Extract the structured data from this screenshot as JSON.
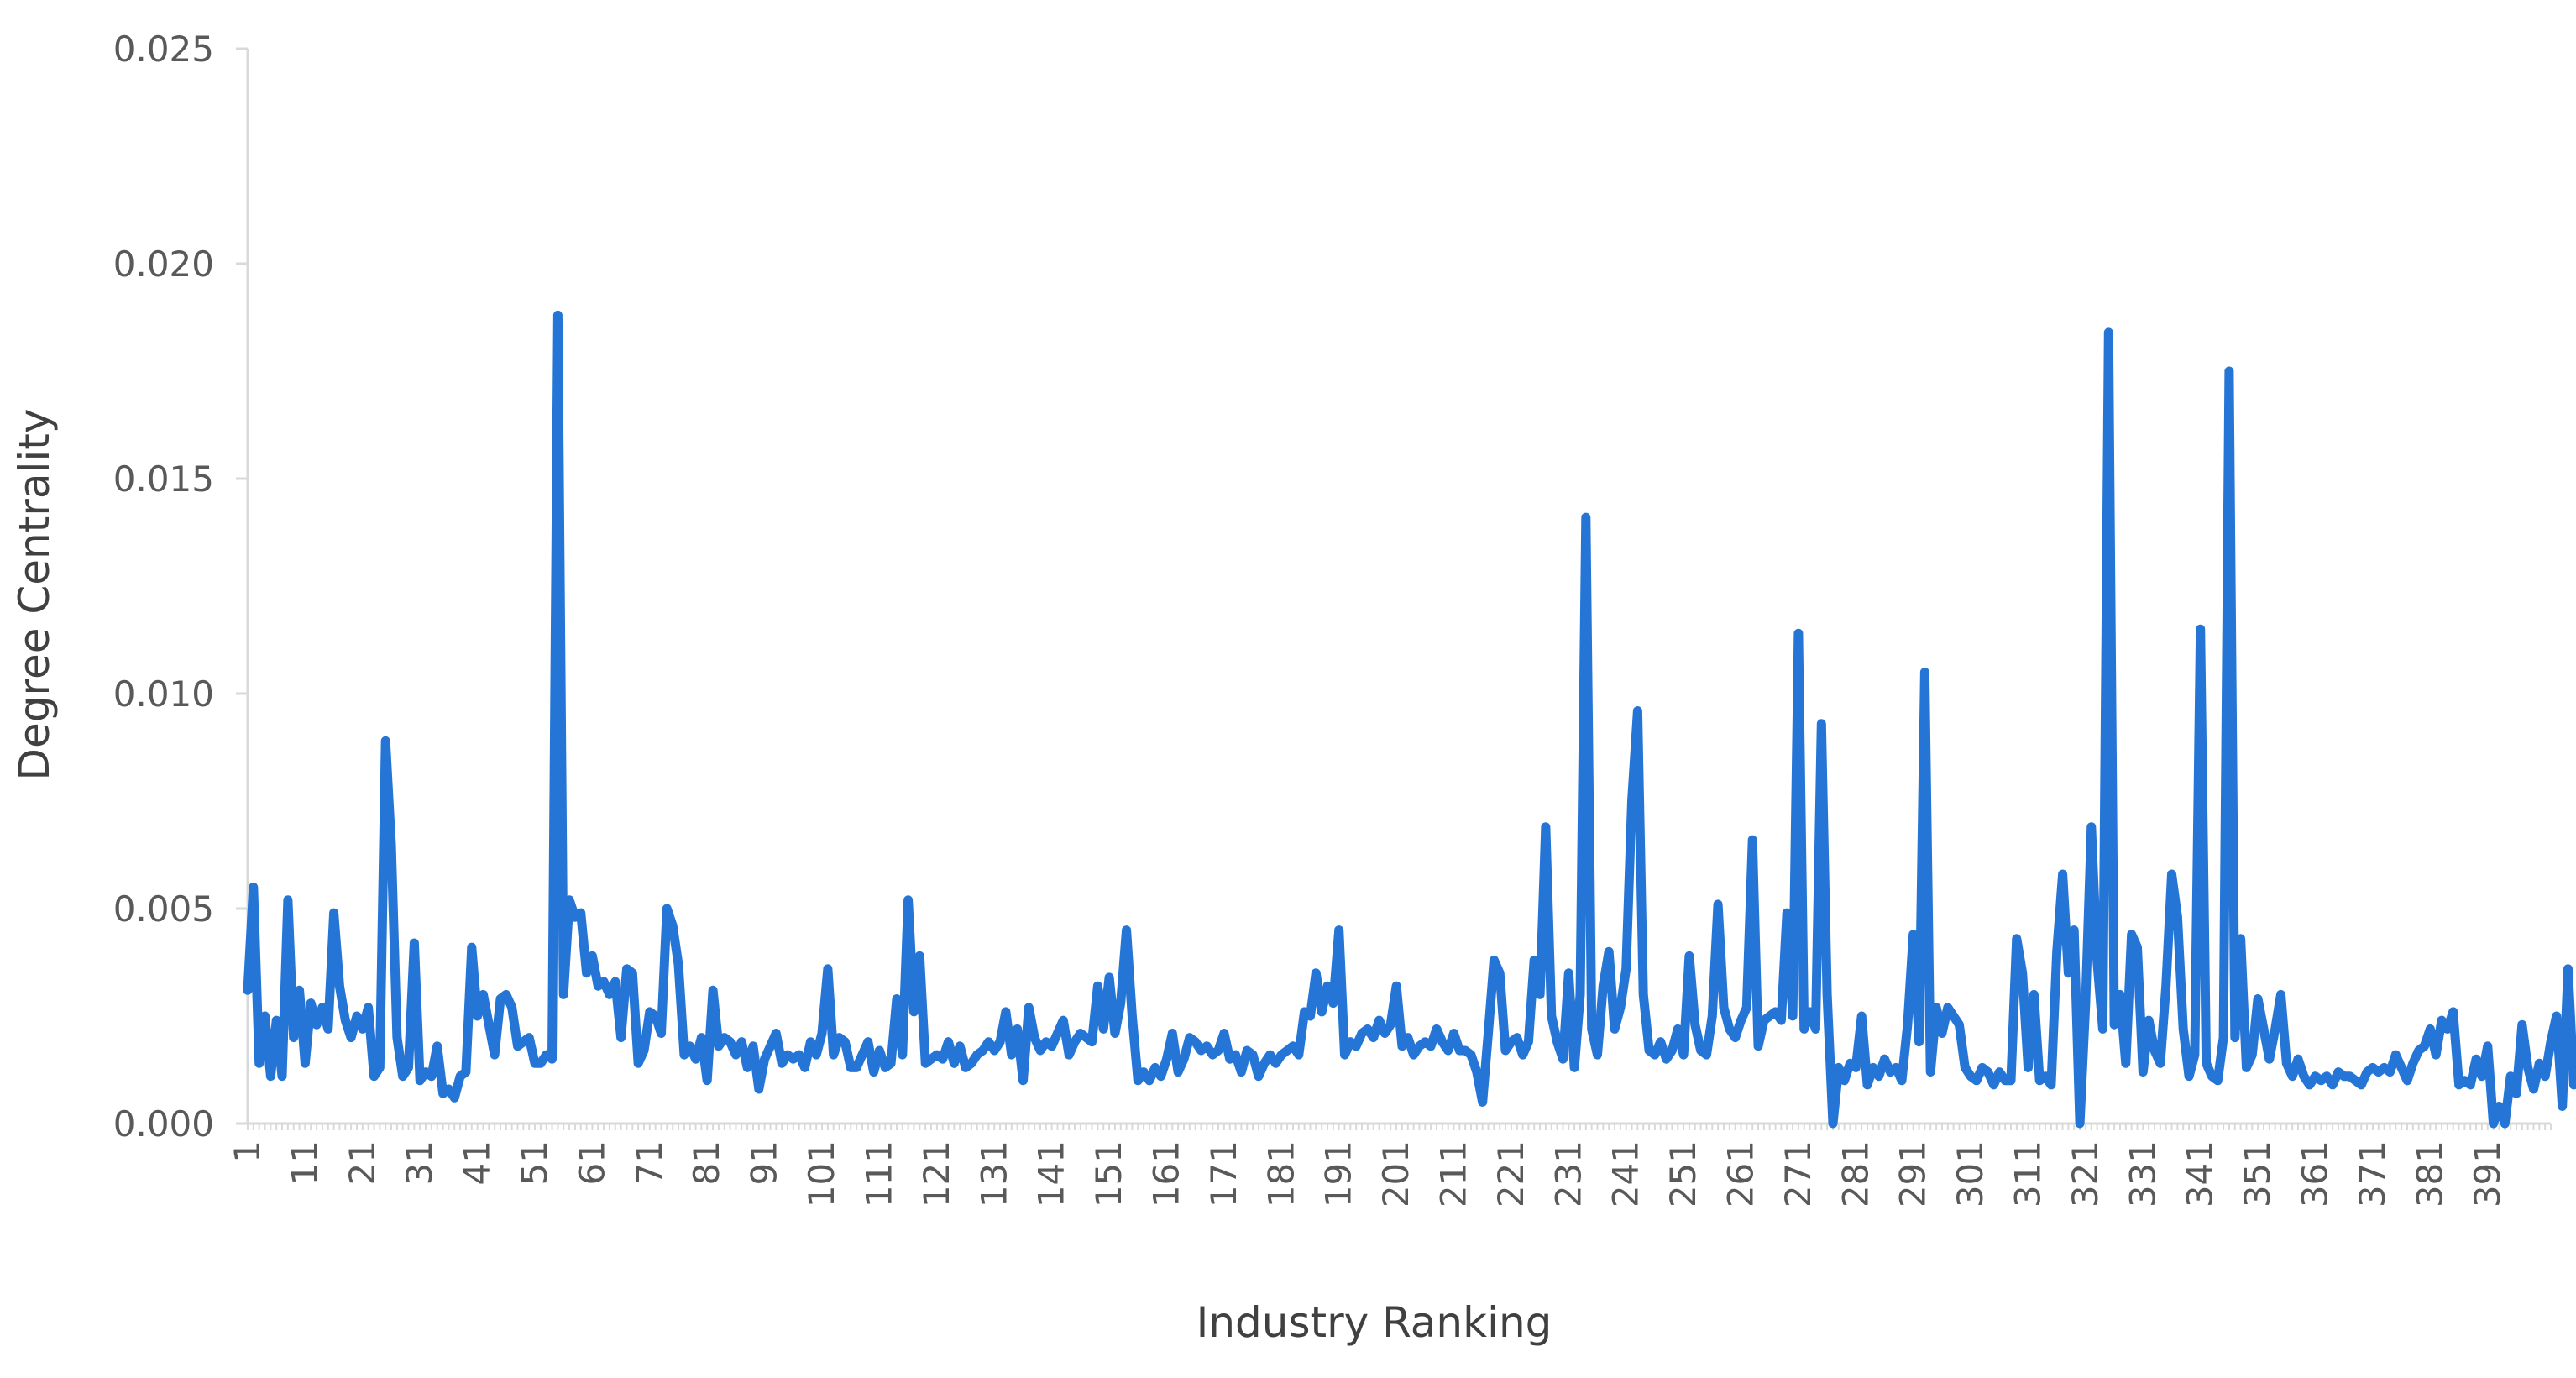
{
  "chart_data": {
    "type": "line",
    "title": "",
    "xlabel": "Industry Ranking",
    "ylabel": "Degree Centrality",
    "ylim": [
      0,
      0.025
    ],
    "xlim": [
      1,
      402
    ],
    "y_ticks": [
      "0.000",
      "0.005",
      "0.010",
      "0.015",
      "0.020",
      "0.025"
    ],
    "x_ticks": [
      "1",
      "11",
      "21",
      "31",
      "41",
      "51",
      "61",
      "71",
      "81",
      "91",
      "101",
      "111",
      "121",
      "131",
      "141",
      "151",
      "161",
      "171",
      "181",
      "191",
      "201",
      "211",
      "221",
      "231",
      "241",
      "251",
      "261",
      "271",
      "281",
      "291",
      "301",
      "311",
      "321",
      "331",
      "341",
      "351",
      "361",
      "371",
      "381",
      "391"
    ],
    "grid": false,
    "legend": "none",
    "series_color": "#2575D6",
    "series": [
      {
        "values": [
          0.0031,
          0.0055,
          0.0014,
          0.0025,
          0.0011,
          0.0024,
          0.0011,
          0.0052,
          0.002,
          0.0031,
          0.0014,
          0.0028,
          0.0023,
          0.0027,
          0.0022,
          0.0049,
          0.0032,
          0.0024,
          0.002,
          0.0025,
          0.0022,
          0.0027,
          0.0011,
          0.0013,
          0.0089,
          0.0065,
          0.002,
          0.0011,
          0.0013,
          0.0042,
          0.001,
          0.0012,
          0.0011,
          0.0018,
          0.0007,
          0.0008,
          0.0006,
          0.0011,
          0.0012,
          0.0041,
          0.0025,
          0.003,
          0.0023,
          0.0016,
          0.0029,
          0.003,
          0.0027,
          0.0018,
          0.0019,
          0.002,
          0.0014,
          0.0014,
          0.0016,
          0.0015,
          0.0188,
          0.003,
          0.0052,
          0.0048,
          0.0049,
          0.0035,
          0.0039,
          0.0032,
          0.0033,
          0.003,
          0.0033,
          0.002,
          0.0036,
          0.0035,
          0.0014,
          0.0017,
          0.0026,
          0.0025,
          0.0021,
          0.005,
          0.0046,
          0.0037,
          0.0016,
          0.0018,
          0.0015,
          0.002,
          0.001,
          0.0031,
          0.0018,
          0.002,
          0.0019,
          0.0016,
          0.0019,
          0.0013,
          0.0018,
          0.0008,
          0.0015,
          0.0018,
          0.0021,
          0.0014,
          0.0016,
          0.0015,
          0.0016,
          0.0013,
          0.0019,
          0.0016,
          0.0021,
          0.0036,
          0.0016,
          0.002,
          0.0019,
          0.0013,
          0.0013,
          0.0016,
          0.0019,
          0.0012,
          0.0017,
          0.0013,
          0.0014,
          0.0029,
          0.0016,
          0.0052,
          0.0026,
          0.0039,
          0.0014,
          0.0015,
          0.0016,
          0.0015,
          0.0019,
          0.0014,
          0.0018,
          0.0013,
          0.0014,
          0.0016,
          0.0017,
          0.0019,
          0.0017,
          0.0019,
          0.0026,
          0.0016,
          0.0022,
          0.001,
          0.0027,
          0.002,
          0.0017,
          0.0019,
          0.0018,
          0.0021,
          0.0024,
          0.0016,
          0.0019,
          0.0021,
          0.002,
          0.0019,
          0.0032,
          0.0022,
          0.0034,
          0.0021,
          0.0028,
          0.0045,
          0.0025,
          0.001,
          0.0012,
          0.001,
          0.0013,
          0.0011,
          0.0015,
          0.0021,
          0.0012,
          0.0015,
          0.002,
          0.0019,
          0.0017,
          0.0018,
          0.0016,
          0.0017,
          0.0021,
          0.0015,
          0.0016,
          0.0012,
          0.0017,
          0.0016,
          0.0011,
          0.0014,
          0.0016,
          0.0014,
          0.0016,
          0.0017,
          0.0018,
          0.0016,
          0.0026,
          0.0025,
          0.0035,
          0.0026,
          0.0032,
          0.0028,
          0.0045,
          0.0016,
          0.0019,
          0.0018,
          0.0021,
          0.0022,
          0.002,
          0.0024,
          0.0021,
          0.0023,
          0.0032,
          0.0018,
          0.002,
          0.0016,
          0.0018,
          0.0019,
          0.0018,
          0.0022,
          0.0019,
          0.0017,
          0.0021,
          0.0017,
          0.0017,
          0.0016,
          0.0012,
          0.0005,
          0.0021,
          0.0038,
          0.0035,
          0.0017,
          0.0019,
          0.002,
          0.0016,
          0.0019,
          0.0038,
          0.003,
          0.0069,
          0.0025,
          0.0019,
          0.0015,
          0.0035,
          0.0013,
          0.003,
          0.0141,
          0.0022,
          0.0016,
          0.0032,
          0.004,
          0.0022,
          0.0027,
          0.0036,
          0.0075,
          0.0096,
          0.003,
          0.0017,
          0.0016,
          0.0019,
          0.0015,
          0.0017,
          0.0022,
          0.0016,
          0.0039,
          0.0023,
          0.0017,
          0.0016,
          0.0025,
          0.0051,
          0.0027,
          0.0022,
          0.002,
          0.0024,
          0.0027,
          0.0066,
          0.0018,
          0.0024,
          0.0025,
          0.0026,
          0.0024,
          0.0049,
          0.0025,
          0.0114,
          0.0022,
          0.0026,
          0.0022,
          0.0093,
          0.003,
          0.0,
          0.0013,
          0.001,
          0.0014,
          0.0013,
          0.0025,
          0.0009,
          0.0013,
          0.0011,
          0.0015,
          0.0012,
          0.0013,
          0.001,
          0.0023,
          0.0044,
          0.0019,
          0.0105,
          0.0012,
          0.0027,
          0.0021,
          0.0027,
          0.0025,
          0.0023,
          0.0013,
          0.0011,
          0.001,
          0.0013,
          0.0012,
          0.0009,
          0.0012,
          0.001,
          0.001,
          0.0043,
          0.0035,
          0.0013,
          0.003,
          0.001,
          0.0011,
          0.0009,
          0.004,
          0.0058,
          0.0035,
          0.0045,
          0.0,
          0.0028,
          0.0069,
          0.0038,
          0.0022,
          0.0184,
          0.0023,
          0.003,
          0.0014,
          0.0044,
          0.0041,
          0.0012,
          0.0024,
          0.0017,
          0.0014,
          0.0032,
          0.0058,
          0.0048,
          0.0022,
          0.0011,
          0.0016,
          0.0115,
          0.0014,
          0.0011,
          0.001,
          0.002,
          0.0175,
          0.002,
          0.0043,
          0.0013,
          0.0016,
          0.0029,
          0.0022,
          0.0015,
          0.0022,
          0.003,
          0.0014,
          0.0011,
          0.0015,
          0.0011,
          0.0009,
          0.0011,
          0.001,
          0.0011,
          0.0009,
          0.0012,
          0.0011,
          0.0011,
          0.001,
          0.0009,
          0.0012,
          0.0013,
          0.0012,
          0.0013,
          0.0012,
          0.0016,
          0.0013,
          0.001,
          0.0014,
          0.0017,
          0.0018,
          0.0022,
          0.0016,
          0.0024,
          0.0022,
          0.0026,
          0.0009,
          0.001,
          0.0009,
          0.0015,
          0.0011,
          0.0018,
          0.0,
          0.0004,
          0.0,
          0.0011,
          0.0007,
          0.0023,
          0.0013,
          0.0008,
          0.0014,
          0.0011,
          0.0019,
          0.0025,
          0.0004,
          0.0036,
          0.0009
        ]
      }
    ]
  }
}
